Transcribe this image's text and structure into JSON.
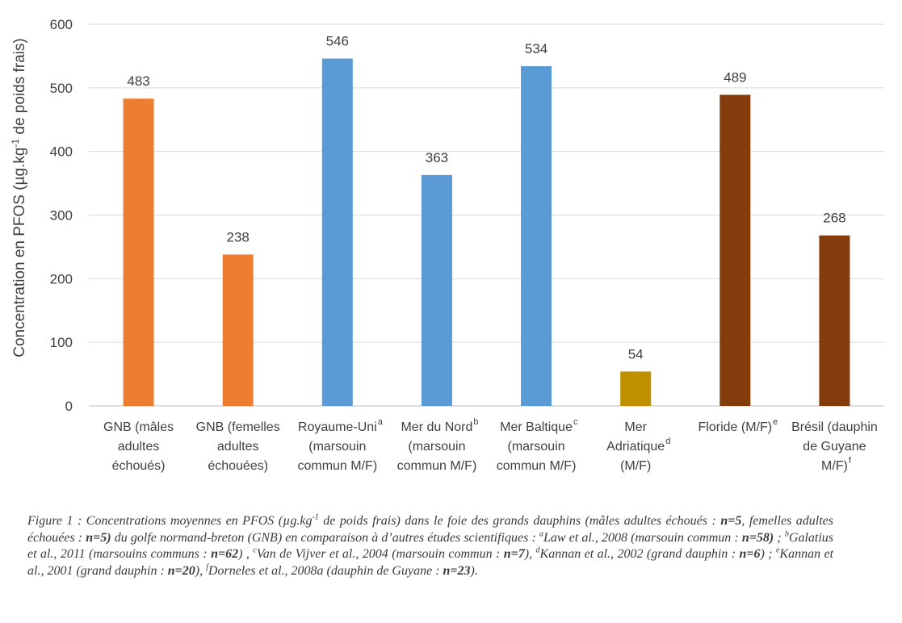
{
  "chart_data": {
    "type": "bar",
    "ylabel": "Concentration en PFOS (µg.kg",
    "ylabel_sup": "-1",
    "ylabel_suffix": " de poids frais)",
    "ylim": [
      0,
      600
    ],
    "yticks": [
      "0",
      "100",
      "200",
      "300",
      "400",
      "500",
      "600"
    ],
    "grid": true,
    "categories": [
      {
        "lines": [
          "GNB (mâles",
          "adultes",
          "échoués)"
        ],
        "sup": "",
        "value": 483,
        "label": "483",
        "color": "#ED7D31"
      },
      {
        "lines": [
          "GNB (femelles",
          "adultes",
          "échouées)"
        ],
        "sup": "",
        "value": 238,
        "label": "238",
        "color": "#ED7D31"
      },
      {
        "lines": [
          "Royaume-Uni",
          "(marsouin",
          "commun M/F)"
        ],
        "sup": "a",
        "value": 546,
        "label": "546",
        "color": "#5B9BD5"
      },
      {
        "lines": [
          "Mer du Nord",
          "(marsouin",
          "commun M/F)"
        ],
        "sup": "b",
        "value": 363,
        "label": "363",
        "color": "#5B9BD5"
      },
      {
        "lines": [
          "Mer Baltique",
          "(marsouin",
          "commun M/F)"
        ],
        "sup": "c",
        "value": 534,
        "label": "534",
        "color": "#5B9BD5"
      },
      {
        "lines": [
          "Mer",
          "Adriatique",
          "(M/F)"
        ],
        "sup": "d",
        "value": 54,
        "label": "54",
        "color": "#BF9000"
      },
      {
        "lines": [
          "Floride (M/F)"
        ],
        "sup": "e",
        "value": 489,
        "label": "489",
        "color": "#843C0C"
      },
      {
        "lines": [
          "Brésil (dauphin",
          "de Guyane",
          "M/F)"
        ],
        "sup": "f",
        "value": 268,
        "label": "268",
        "color": "#843C0C"
      }
    ]
  },
  "caption": {
    "html": "Figure 1 : Concentrations moyennes en PFOS (µg.kg<sup>-1</sup> de poids frais) dans le foie des grands dauphins (mâles adultes échoués : <b>n=5</b>, femelles adultes échouées : <b>n=5)</b> du golfe normand-breton (GNB) en comparaison à d’autres études scientifiques : <sup>a</sup>Law et al., 2008 (marsouin commun : <b>n=58)</b> ; <sup>b</sup>Galatius et al., 2011 (marsouins communs : <b>n=62</b>) , <sup>c</sup>Van de Vijver et al., 2004 (marsouin commun : <b>n=7</b>), <sup>d</sup>Kannan et al., 2002 (grand dauphin : <b>n=6</b>) ; <sup>e</sup>Kannan et al., 2001 (grand dauphin : <b>n=20</b>), <sup>f</sup>Dorneles et al., 2008a (dauphin de Guyane : <b>n=23</b>)."
  }
}
